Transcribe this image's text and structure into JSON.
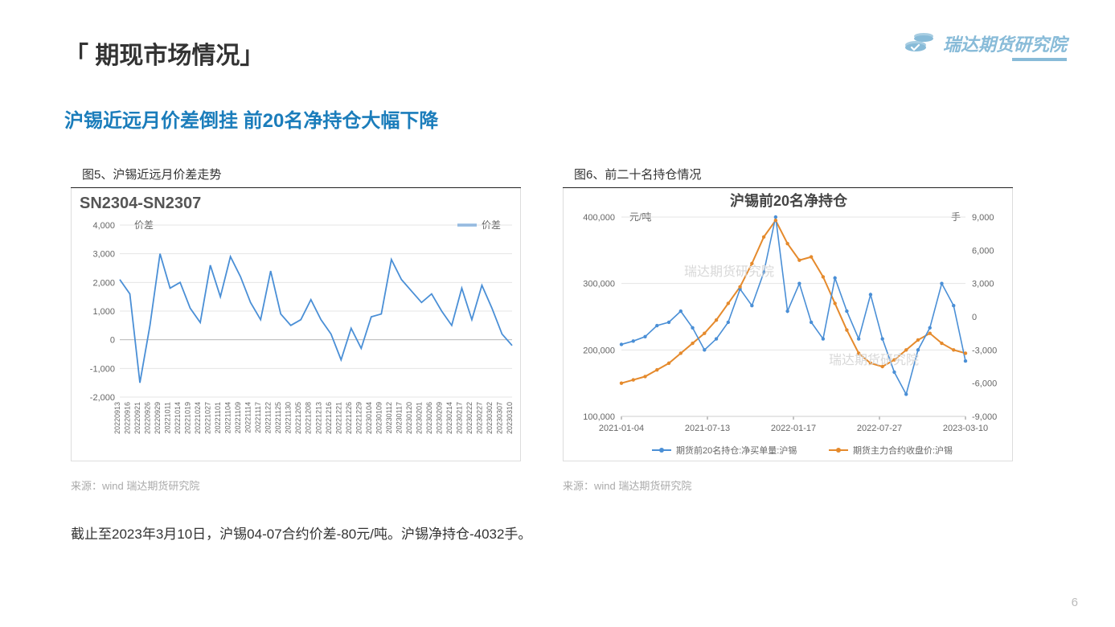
{
  "header": {
    "title": "「 期现市场情况」",
    "logo_text": "瑞达期货研究院"
  },
  "subtitle": "沪锡近远月价差倒挂 前20名净持仓大幅下降",
  "chart_left": {
    "caption": "图5、沪锡近远月价差走势",
    "inner_title": "SN2304-SN2307",
    "y_label": "价差",
    "legend": "价差",
    "type": "line",
    "line_color": "#4a8fd6",
    "axis_color": "#888888",
    "grid_color": "#e5e5e5",
    "font_color": "#666666",
    "ylim": [
      -2000,
      4000
    ],
    "ytick_step": 1000,
    "yticks": [
      "4,000",
      "3,000",
      "2,000",
      "1,000",
      "0",
      "-1,000",
      "-2,000"
    ],
    "x_categories": [
      "20220913",
      "20220916",
      "20220921",
      "20220926",
      "20220929",
      "20221011",
      "20221014",
      "20221019",
      "20221024",
      "20221027",
      "20221101",
      "20221104",
      "20221109",
      "20221114",
      "20221117",
      "20221122",
      "20221125",
      "20221130",
      "20221205",
      "20221208",
      "20221213",
      "20221216",
      "20221221",
      "20221226",
      "20221229",
      "20230104",
      "20230109",
      "20230112",
      "20230117",
      "20230120",
      "20230201",
      "20230206",
      "20230209",
      "20230214",
      "20230217",
      "20230222",
      "20230227",
      "20230302",
      "20230307",
      "20230310"
    ],
    "series": [
      2100,
      1600,
      -1500,
      500,
      3000,
      1800,
      2000,
      1100,
      600,
      2600,
      1500,
      2900,
      2200,
      1300,
      700,
      2400,
      900,
      500,
      700,
      1400,
      700,
      200,
      -700,
      400,
      -300,
      800,
      900,
      2800,
      2100,
      1700,
      1300,
      1600,
      1000,
      500,
      1800,
      700,
      1900,
      1100,
      200,
      -200
    ],
    "source": "来源：wind   瑞达期货研究院"
  },
  "chart_right": {
    "caption": "图6、前二十名持仓情况",
    "inner_title": "沪锡前20名净持仓",
    "y_left_label": "元/吨",
    "y_right_label": "手",
    "type": "dual-axis-line",
    "line1_color": "#4a8fd6",
    "line2_color": "#e58a2c",
    "axis_color": "#888888",
    "grid_color": "#e5e5e5",
    "font_color": "#666666",
    "y_left_lim": [
      100000,
      400000
    ],
    "y_left_ticks": [
      "400,000",
      "300,000",
      "200,000",
      "100,000"
    ],
    "y_right_lim": [
      -9000,
      9000
    ],
    "y_right_ticks": [
      "9,000",
      "6,000",
      "3,000",
      "0",
      "-3,000",
      "-6,000",
      "-9,000"
    ],
    "x_ticks": [
      "2021-01-04",
      "2021-07-13",
      "2022-01-17",
      "2022-07-27",
      "2023-03-10"
    ],
    "legend1": "期货前20名持仓:净买单量:沪锡",
    "legend2": "期货主力合约收盘价:沪锡",
    "watermark": "瑞达期货研究院",
    "series_price": [
      150000,
      155000,
      160000,
      170000,
      180000,
      195000,
      210000,
      225000,
      245000,
      270000,
      295000,
      330000,
      370000,
      395000,
      360000,
      335000,
      340000,
      310000,
      270000,
      230000,
      195000,
      180000,
      175000,
      185000,
      200000,
      215000,
      225000,
      210000,
      200000,
      195000
    ],
    "series_hold": [
      -2500,
      -2200,
      -1800,
      -800,
      -500,
      500,
      -1000,
      -3000,
      -2000,
      -500,
      2500,
      1000,
      4000,
      9000,
      500,
      3000,
      -500,
      -2000,
      3500,
      500,
      -2000,
      2000,
      -2000,
      -5000,
      -7000,
      -3000,
      -1000,
      3000,
      1000,
      -4000
    ],
    "source": "来源：wind   瑞达期货研究院"
  },
  "footnote": "截止至2023年3月10日，沪锡04-07合约价差-80元/吨。沪锡净持仓-4032手。",
  "page_number": "6"
}
